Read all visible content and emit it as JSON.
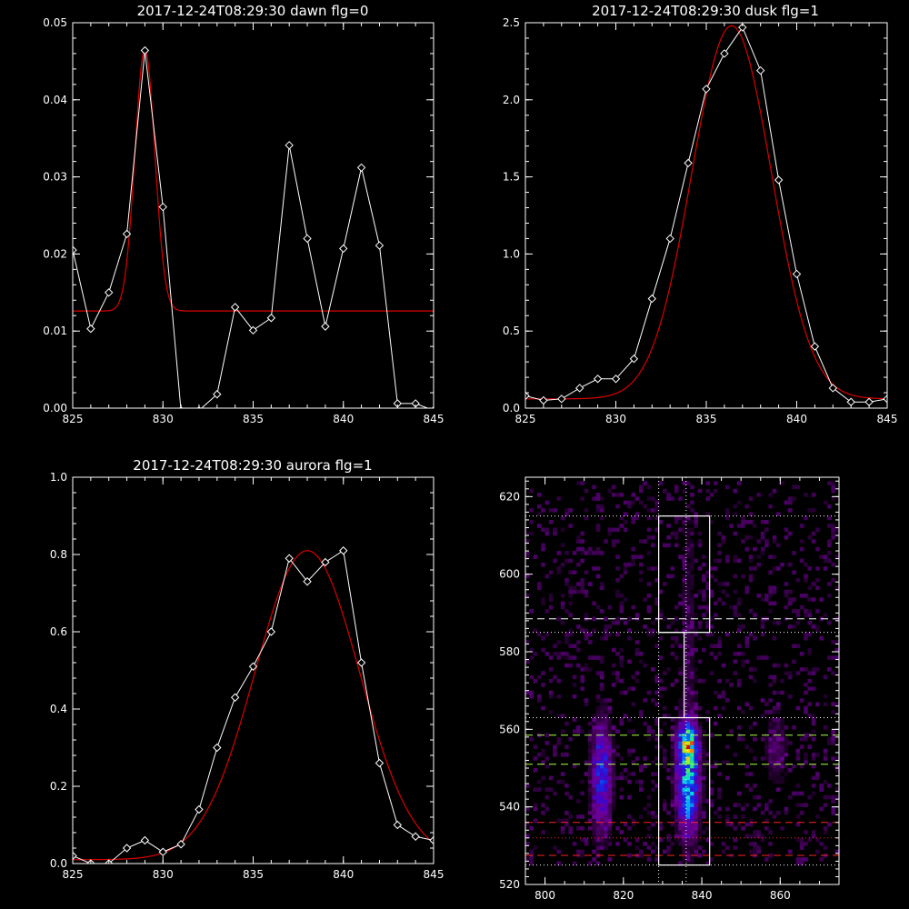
{
  "chart_data": [
    {
      "type": "line",
      "title": "2017-12-24T08:29:30 dawn flg=0",
      "xlim": [
        825,
        845
      ],
      "ylim": [
        0,
        0.05
      ],
      "xticks": [
        825,
        830,
        835,
        840,
        845
      ],
      "yticks": [
        0.0,
        0.01,
        0.02,
        0.03,
        0.04,
        0.05
      ],
      "xtick_labels": [
        "825",
        "830",
        "835",
        "840",
        "845"
      ],
      "ytick_labels": [
        "0.00",
        "0.01",
        "0.02",
        "0.03",
        "0.04",
        "0.05"
      ],
      "series": [
        {
          "color": "#ffffff",
          "marker": "diamond",
          "x": [
            825,
            826,
            827,
            828,
            829,
            830,
            831,
            832,
            833,
            834,
            835,
            836,
            837,
            838,
            839,
            840,
            841,
            842,
            843,
            844,
            845
          ],
          "y": [
            0.0205,
            0.0103,
            0.015,
            0.0226,
            0.0464,
            0.0261,
            -0.0003,
            -0.0003,
            0.0018,
            0.0131,
            0.0101,
            0.0117,
            0.0341,
            0.022,
            0.0106,
            0.0207,
            0.0312,
            0.0211,
            0.0006,
            0.0006,
            -0.0003
          ]
        },
        {
          "color": "#dd0000",
          "fit": "gaussian",
          "amplitude": 0.034,
          "center": 829,
          "sigma": 0.55,
          "baseline": 0.0126
        }
      ]
    },
    {
      "type": "line",
      "title": "2017-12-24T08:29:30 dusk flg=1",
      "xlim": [
        825,
        845
      ],
      "ylim": [
        0,
        2.5
      ],
      "xticks": [
        825,
        830,
        835,
        840,
        845
      ],
      "yticks": [
        0.0,
        0.5,
        1.0,
        1.5,
        2.0,
        2.5
      ],
      "xtick_labels": [
        "825",
        "830",
        "835",
        "840",
        "845"
      ],
      "ytick_labels": [
        "0.0",
        "0.5",
        "1.0",
        "1.5",
        "2.0",
        "2.5"
      ],
      "series": [
        {
          "color": "#ffffff",
          "marker": "diamond",
          "x": [
            825,
            826,
            827,
            828,
            829,
            830,
            831,
            832,
            833,
            834,
            835,
            836,
            837,
            838,
            839,
            840,
            841,
            842,
            843,
            844,
            845
          ],
          "y": [
            0.08,
            0.05,
            0.06,
            0.13,
            0.19,
            0.19,
            0.32,
            0.71,
            1.1,
            1.59,
            2.07,
            2.3,
            2.47,
            2.19,
            1.48,
            0.87,
            0.4,
            0.13,
            0.04,
            0.04,
            0.06
          ]
        },
        {
          "color": "#dd0000",
          "fit": "gaussian",
          "amplitude": 2.42,
          "center": 836.4,
          "sigma": 2.2,
          "baseline": 0.06
        }
      ]
    },
    {
      "type": "line",
      "title": "2017-12-24T08:29:30 aurora flg=1",
      "xlim": [
        825,
        845
      ],
      "ylim": [
        0,
        1.0
      ],
      "xticks": [
        825,
        830,
        835,
        840,
        845
      ],
      "yticks": [
        0.0,
        0.2,
        0.4,
        0.6,
        0.8,
        1.0
      ],
      "xtick_labels": [
        "825",
        "830",
        "835",
        "840",
        "845"
      ],
      "ytick_labels": [
        "0.0",
        "0.2",
        "0.4",
        "0.6",
        "0.8",
        "1.0"
      ],
      "series": [
        {
          "color": "#ffffff",
          "marker": "diamond",
          "x": [
            825,
            826,
            827,
            828,
            829,
            830,
            831,
            832,
            833,
            834,
            835,
            836,
            837,
            838,
            839,
            840,
            841,
            842,
            843,
            844,
            845
          ],
          "y": [
            0.02,
            0.0,
            0.0,
            0.04,
            0.06,
            0.03,
            0.05,
            0.14,
            0.3,
            0.43,
            0.51,
            0.6,
            0.79,
            0.73,
            0.78,
            0.81,
            0.52,
            0.26,
            0.1,
            0.07,
            0.06
          ]
        },
        {
          "color": "#dd0000",
          "fit": "gaussian",
          "amplitude": 0.8,
          "center": 838,
          "sigma": 2.9,
          "baseline": 0.01
        }
      ]
    },
    {
      "type": "heatmap",
      "title": "",
      "xlim": [
        795,
        875
      ],
      "ylim": [
        520,
        625
      ],
      "xticks": [
        800,
        820,
        840,
        860
      ],
      "yticks": [
        520,
        540,
        560,
        580,
        600,
        620
      ],
      "xtick_labels": [
        "800",
        "820",
        "840",
        "860"
      ],
      "ytick_labels": [
        "520",
        "540",
        "560",
        "580",
        "600",
        "620"
      ],
      "colormap": "rainbow",
      "sources": [
        {
          "x": 836.5,
          "y": 546,
          "sx": 1.8,
          "sy": 8,
          "amp": 0.55
        },
        {
          "x": 836.5,
          "y": 556,
          "sx": 1.6,
          "sy": 3.5,
          "amp": 0.55
        },
        {
          "x": 814.5,
          "y": 548,
          "sx": 1.6,
          "sy": 9,
          "amp": 0.38
        },
        {
          "x": 836.5,
          "y": 580,
          "sx": 1.5,
          "sy": 30,
          "amp": 0.06
        },
        {
          "x": 859,
          "y": 555,
          "sx": 2,
          "sy": 6,
          "amp": 0.1
        }
      ],
      "overlays": {
        "white_boxes": [
          {
            "x": [
              829,
              842
            ],
            "y": [
              525,
              563
            ]
          },
          {
            "x": [
              829,
              842
            ],
            "y": [
              585,
              615
            ]
          }
        ],
        "white_connector": {
          "x": [
            829,
            835.5,
            835.5
          ],
          "y": [
            585,
            585,
            563
          ]
        },
        "vertical_dotted": [
          829,
          836
        ],
        "white_dotted_h": [
          525,
          563,
          585,
          615
        ],
        "white_dashed_h": [
          588.5
        ],
        "green_dashed_h": [
          551,
          558.5
        ],
        "red_dashed_h": [
          527.5,
          536
        ],
        "red_dotted_h": [
          532
        ],
        "colors": {
          "white": "#ffffff",
          "green": "#aaff44",
          "red": "#ff2222"
        }
      }
    }
  ]
}
